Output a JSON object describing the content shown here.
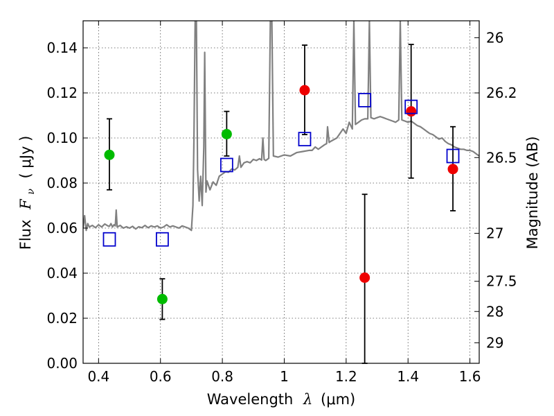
{
  "chart_data": {
    "type": "scatter",
    "xlabel_main": "Wavelength",
    "xlabel_symbol": "λ",
    "xlabel_unit": "(μm)",
    "ylabel_main": "Flux",
    "ylabel_symbol": "F",
    "ylabel_sub": "ν",
    "ylabel_unit": "( μJy )",
    "y2label": "Magnitude (AB)",
    "xlim": [
      0.35,
      1.63
    ],
    "ylim": [
      0.0,
      0.152
    ],
    "grid": true,
    "x_ticks": [
      0.4,
      0.6,
      0.8,
      1.0,
      1.2,
      1.4,
      1.6
    ],
    "x_tick_labels": [
      "0.4",
      "0.6",
      "0.8",
      "1",
      "1.2",
      "1.4",
      "1.6"
    ],
    "y_ticks": [
      0.0,
      0.02,
      0.04,
      0.06,
      0.08,
      0.1,
      0.12,
      0.14
    ],
    "y_tick_labels": [
      "0.00",
      "0.02",
      "0.04",
      "0.06",
      "0.08",
      "0.10",
      "0.12",
      "0.14"
    ],
    "y2_ticks": [
      {
        "flux": 0.1445,
        "label": "26"
      },
      {
        "flux": 0.12,
        "label": "26.2"
      },
      {
        "flux": 0.0913,
        "label": "26.5"
      },
      {
        "flux": 0.0577,
        "label": "27"
      },
      {
        "flux": 0.0364,
        "label": "27.5"
      },
      {
        "flux": 0.023,
        "label": "28"
      },
      {
        "flux": 0.0091,
        "label": "29"
      }
    ],
    "colors": {
      "model_line": "#808080",
      "green_points": "#00bb00",
      "red_points": "#ee0000",
      "model_photometry": "#0000cc",
      "error_bars": "#000000"
    },
    "series": [
      {
        "marker": "circle",
        "color": "#00bb00",
        "points": [
          {
            "x": 0.435,
            "y": 0.0925,
            "yerr_low": 0.077,
            "yerr_high": 0.1085
          },
          {
            "x": 0.606,
            "y": 0.0285,
            "yerr_low": 0.0195,
            "yerr_high": 0.0375
          },
          {
            "x": 0.814,
            "y": 0.1017,
            "yerr_low": 0.092,
            "yerr_high": 0.1118
          }
        ]
      },
      {
        "marker": "circle",
        "color": "#ee0000",
        "points": [
          {
            "x": 1.066,
            "y": 0.1212,
            "yerr_low": 0.1015,
            "yerr_high": 0.1412
          },
          {
            "x": 1.26,
            "y": 0.038,
            "yerr_low": 0.0,
            "yerr_high": 0.075
          },
          {
            "x": 1.41,
            "y": 0.1118,
            "yerr_low": 0.0822,
            "yerr_high": 0.1415
          },
          {
            "x": 1.545,
            "y": 0.0862,
            "yerr_low": 0.0677,
            "yerr_high": 0.105
          }
        ]
      },
      {
        "marker": "square",
        "color": "#0000cc",
        "points": [
          {
            "x": 0.435,
            "y": 0.055
          },
          {
            "x": 0.606,
            "y": 0.055
          },
          {
            "x": 0.814,
            "y": 0.088
          },
          {
            "x": 1.066,
            "y": 0.0995
          },
          {
            "x": 1.26,
            "y": 0.1168
          },
          {
            "x": 1.41,
            "y": 0.1138
          },
          {
            "x": 1.545,
            "y": 0.092
          }
        ]
      }
    ],
    "model_spectrum": [
      [
        0.35,
        0.06
      ],
      [
        0.355,
        0.0655
      ],
      [
        0.36,
        0.059
      ],
      [
        0.365,
        0.062
      ],
      [
        0.37,
        0.0605
      ],
      [
        0.38,
        0.0612
      ],
      [
        0.39,
        0.0602
      ],
      [
        0.4,
        0.0615
      ],
      [
        0.41,
        0.0605
      ],
      [
        0.42,
        0.0618
      ],
      [
        0.43,
        0.061
      ],
      [
        0.435,
        0.0608
      ],
      [
        0.44,
        0.062
      ],
      [
        0.445,
        0.0605
      ],
      [
        0.45,
        0.0615
      ],
      [
        0.454,
        0.061
      ],
      [
        0.457,
        0.068
      ],
      [
        0.46,
        0.0605
      ],
      [
        0.47,
        0.0612
      ],
      [
        0.48,
        0.06
      ],
      [
        0.49,
        0.0606
      ],
      [
        0.5,
        0.06
      ],
      [
        0.51,
        0.0608
      ],
      [
        0.52,
        0.0596
      ],
      [
        0.53,
        0.0606
      ],
      [
        0.54,
        0.0602
      ],
      [
        0.55,
        0.0612
      ],
      [
        0.56,
        0.0602
      ],
      [
        0.57,
        0.061
      ],
      [
        0.58,
        0.0605
      ],
      [
        0.59,
        0.061
      ],
      [
        0.6,
        0.06
      ],
      [
        0.61,
        0.0605
      ],
      [
        0.62,
        0.0615
      ],
      [
        0.63,
        0.0605
      ],
      [
        0.64,
        0.061
      ],
      [
        0.65,
        0.0605
      ],
      [
        0.66,
        0.06
      ],
      [
        0.67,
        0.061
      ],
      [
        0.68,
        0.0605
      ],
      [
        0.69,
        0.06
      ],
      [
        0.7,
        0.059
      ],
      [
        0.705,
        0.07
      ],
      [
        0.708,
        0.098
      ],
      [
        0.712,
        0.152
      ],
      [
        0.716,
        0.152
      ],
      [
        0.72,
        0.086
      ],
      [
        0.725,
        0.072
      ],
      [
        0.73,
        0.083
      ],
      [
        0.735,
        0.07
      ],
      [
        0.74,
        0.096
      ],
      [
        0.743,
        0.138
      ],
      [
        0.747,
        0.076
      ],
      [
        0.75,
        0.081
      ],
      [
        0.76,
        0.077
      ],
      [
        0.77,
        0.0805
      ],
      [
        0.78,
        0.079
      ],
      [
        0.79,
        0.083
      ],
      [
        0.8,
        0.084
      ],
      [
        0.81,
        0.085
      ],
      [
        0.82,
        0.0848
      ],
      [
        0.83,
        0.0862
      ],
      [
        0.84,
        0.0858
      ],
      [
        0.85,
        0.087
      ],
      [
        0.855,
        0.092
      ],
      [
        0.86,
        0.087
      ],
      [
        0.87,
        0.089
      ],
      [
        0.88,
        0.0895
      ],
      [
        0.89,
        0.089
      ],
      [
        0.9,
        0.0905
      ],
      [
        0.91,
        0.09
      ],
      [
        0.92,
        0.0908
      ],
      [
        0.927,
        0.0902
      ],
      [
        0.931,
        0.1
      ],
      [
        0.935,
        0.0905
      ],
      [
        0.94,
        0.09
      ],
      [
        0.95,
        0.091
      ],
      [
        0.955,
        0.152
      ],
      [
        0.96,
        0.152
      ],
      [
        0.965,
        0.092
      ],
      [
        0.98,
        0.0915
      ],
      [
        1.0,
        0.0925
      ],
      [
        1.02,
        0.092
      ],
      [
        1.04,
        0.0935
      ],
      [
        1.06,
        0.094
      ],
      [
        1.08,
        0.0945
      ],
      [
        1.09,
        0.0945
      ],
      [
        1.1,
        0.096
      ],
      [
        1.11,
        0.095
      ],
      [
        1.12,
        0.096
      ],
      [
        1.13,
        0.097
      ],
      [
        1.137,
        0.0975
      ],
      [
        1.14,
        0.105
      ],
      [
        1.145,
        0.098
      ],
      [
        1.15,
        0.0985
      ],
      [
        1.17,
        0.1
      ],
      [
        1.18,
        0.102
      ],
      [
        1.19,
        0.104
      ],
      [
        1.2,
        0.102
      ],
      [
        1.21,
        0.107
      ],
      [
        1.22,
        0.104
      ],
      [
        1.225,
        0.152
      ],
      [
        1.23,
        0.106
      ],
      [
        1.24,
        0.107
      ],
      [
        1.25,
        0.108
      ],
      [
        1.26,
        0.1085
      ],
      [
        1.27,
        0.1085
      ],
      [
        1.275,
        0.152
      ],
      [
        1.28,
        0.109
      ],
      [
        1.29,
        0.1085
      ],
      [
        1.3,
        0.109
      ],
      [
        1.31,
        0.1095
      ],
      [
        1.32,
        0.109
      ],
      [
        1.33,
        0.1085
      ],
      [
        1.34,
        0.108
      ],
      [
        1.35,
        0.1075
      ],
      [
        1.36,
        0.107
      ],
      [
        1.37,
        0.108
      ],
      [
        1.375,
        0.152
      ],
      [
        1.38,
        0.108
      ],
      [
        1.39,
        0.1075
      ],
      [
        1.4,
        0.107
      ],
      [
        1.41,
        0.1075
      ],
      [
        1.42,
        0.1065
      ],
      [
        1.43,
        0.1055
      ],
      [
        1.44,
        0.105
      ],
      [
        1.45,
        0.104
      ],
      [
        1.46,
        0.103
      ],
      [
        1.47,
        0.102
      ],
      [
        1.48,
        0.1015
      ],
      [
        1.49,
        0.1005
      ],
      [
        1.5,
        0.0995
      ],
      [
        1.51,
        0.1
      ],
      [
        1.52,
        0.0985
      ],
      [
        1.53,
        0.0975
      ],
      [
        1.54,
        0.097
      ],
      [
        1.55,
        0.096
      ],
      [
        1.56,
        0.0955
      ],
      [
        1.57,
        0.095
      ],
      [
        1.58,
        0.095
      ],
      [
        1.59,
        0.0945
      ],
      [
        1.6,
        0.0945
      ],
      [
        1.61,
        0.094
      ],
      [
        1.62,
        0.093
      ],
      [
        1.63,
        0.092
      ]
    ]
  }
}
